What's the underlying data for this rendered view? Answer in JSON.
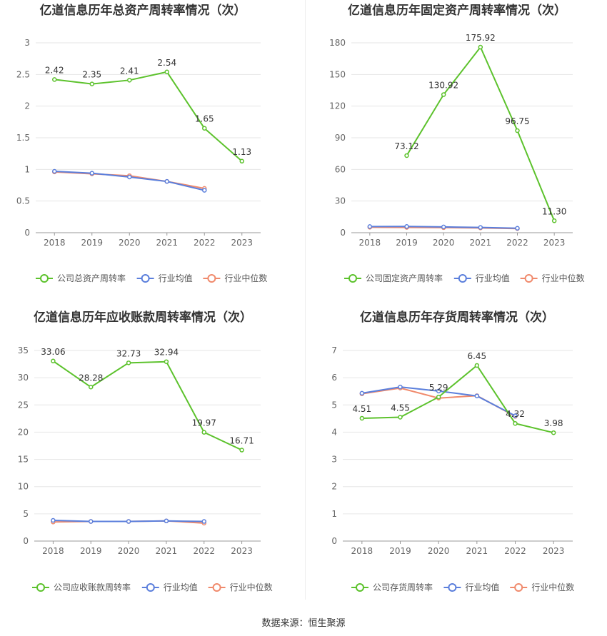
{
  "source": "数据来源：恒生聚源",
  "colors": {
    "company": "#5cc22c",
    "avg": "#5b7fdc",
    "median": "#f08a6c"
  },
  "chart_data": [
    {
      "type": "line",
      "title": "亿道信息历年总资产周转率情况（次）",
      "categories": [
        "2018",
        "2019",
        "2020",
        "2021",
        "2022",
        "2023"
      ],
      "ylim": [
        0,
        3
      ],
      "yticks": [
        0,
        0.5,
        1,
        1.5,
        2,
        2.5,
        3
      ],
      "ytick_labels": [
        "0",
        "0.5",
        "1",
        "1.5",
        "2",
        "2.5",
        "3"
      ],
      "series": [
        {
          "name": "公司总资产周转率",
          "key": "company",
          "values": [
            2.42,
            2.35,
            2.41,
            2.54,
            1.65,
            1.13
          ],
          "labels": [
            "2.42",
            "2.35",
            "2.41",
            "2.54",
            "1.65",
            "1.13"
          ]
        },
        {
          "name": "行业均值",
          "key": "avg",
          "values": [
            0.97,
            0.94,
            0.88,
            0.81,
            0.67,
            null
          ]
        },
        {
          "name": "行业中位数",
          "key": "median",
          "values": [
            0.96,
            0.93,
            0.9,
            0.81,
            0.7,
            null
          ]
        }
      ]
    },
    {
      "type": "line",
      "title": "亿道信息历年固定资产周转率情况（次）",
      "categories": [
        "2018",
        "2019",
        "2020",
        "2021",
        "2022",
        "2023"
      ],
      "ylim": [
        0,
        180
      ],
      "yticks": [
        0,
        30,
        60,
        90,
        120,
        150,
        180
      ],
      "ytick_labels": [
        "0",
        "30",
        "60",
        "90",
        "120",
        "150",
        "180"
      ],
      "series": [
        {
          "name": "公司固定资产周转率",
          "key": "company",
          "values": [
            null,
            73.12,
            130.92,
            175.92,
            96.75,
            11.3
          ],
          "labels": [
            null,
            "73.12",
            "130.92",
            "175.92",
            "96.75",
            "11.30"
          ]
        },
        {
          "name": "行业均值",
          "key": "avg",
          "values": [
            5.8,
            5.9,
            5.5,
            5.0,
            4.2,
            null
          ]
        },
        {
          "name": "行业中位数",
          "key": "median",
          "values": [
            5.2,
            5.0,
            4.8,
            4.5,
            3.9,
            null
          ]
        }
      ]
    },
    {
      "type": "line",
      "title": "亿道信息历年应收账款周转率情况（次）",
      "categories": [
        "2018",
        "2019",
        "2020",
        "2021",
        "2022",
        "2023"
      ],
      "ylim": [
        0,
        35
      ],
      "yticks": [
        0,
        5,
        10,
        15,
        20,
        25,
        30,
        35
      ],
      "ytick_labels": [
        "0",
        "5",
        "10",
        "15",
        "20",
        "25",
        "30",
        "35"
      ],
      "series": [
        {
          "name": "公司应收账款周转率",
          "key": "company",
          "values": [
            33.06,
            28.28,
            32.73,
            32.94,
            19.97,
            16.71
          ],
          "labels": [
            "33.06",
            "28.28",
            "32.73",
            "32.94",
            "19.97",
            "16.71"
          ]
        },
        {
          "name": "行业均值",
          "key": "avg",
          "values": [
            3.8,
            3.6,
            3.6,
            3.7,
            3.6,
            null
          ]
        },
        {
          "name": "行业中位数",
          "key": "median",
          "values": [
            3.5,
            3.6,
            3.6,
            3.7,
            3.3,
            null
          ]
        }
      ]
    },
    {
      "type": "line",
      "title": "亿道信息历年存货周转率情况（次）",
      "categories": [
        "2018",
        "2019",
        "2020",
        "2021",
        "2022",
        "2023"
      ],
      "ylim": [
        0,
        7
      ],
      "yticks": [
        0,
        1,
        2,
        3,
        4,
        5,
        6,
        7
      ],
      "ytick_labels": [
        "0",
        "1",
        "2",
        "3",
        "4",
        "5",
        "6",
        "7"
      ],
      "series": [
        {
          "name": "公司存货周转率",
          "key": "company",
          "values": [
            4.51,
            4.55,
            5.29,
            6.45,
            4.32,
            3.98
          ],
          "labels": [
            "4.51",
            "4.55",
            "5.29",
            "6.45",
            "4.32",
            "3.98"
          ]
        },
        {
          "name": "行业均值",
          "key": "avg",
          "values": [
            5.43,
            5.66,
            5.51,
            5.33,
            4.6,
            null
          ]
        },
        {
          "name": "行业中位数",
          "key": "median",
          "values": [
            5.41,
            5.62,
            5.25,
            5.34,
            4.58,
            null
          ]
        }
      ]
    }
  ]
}
